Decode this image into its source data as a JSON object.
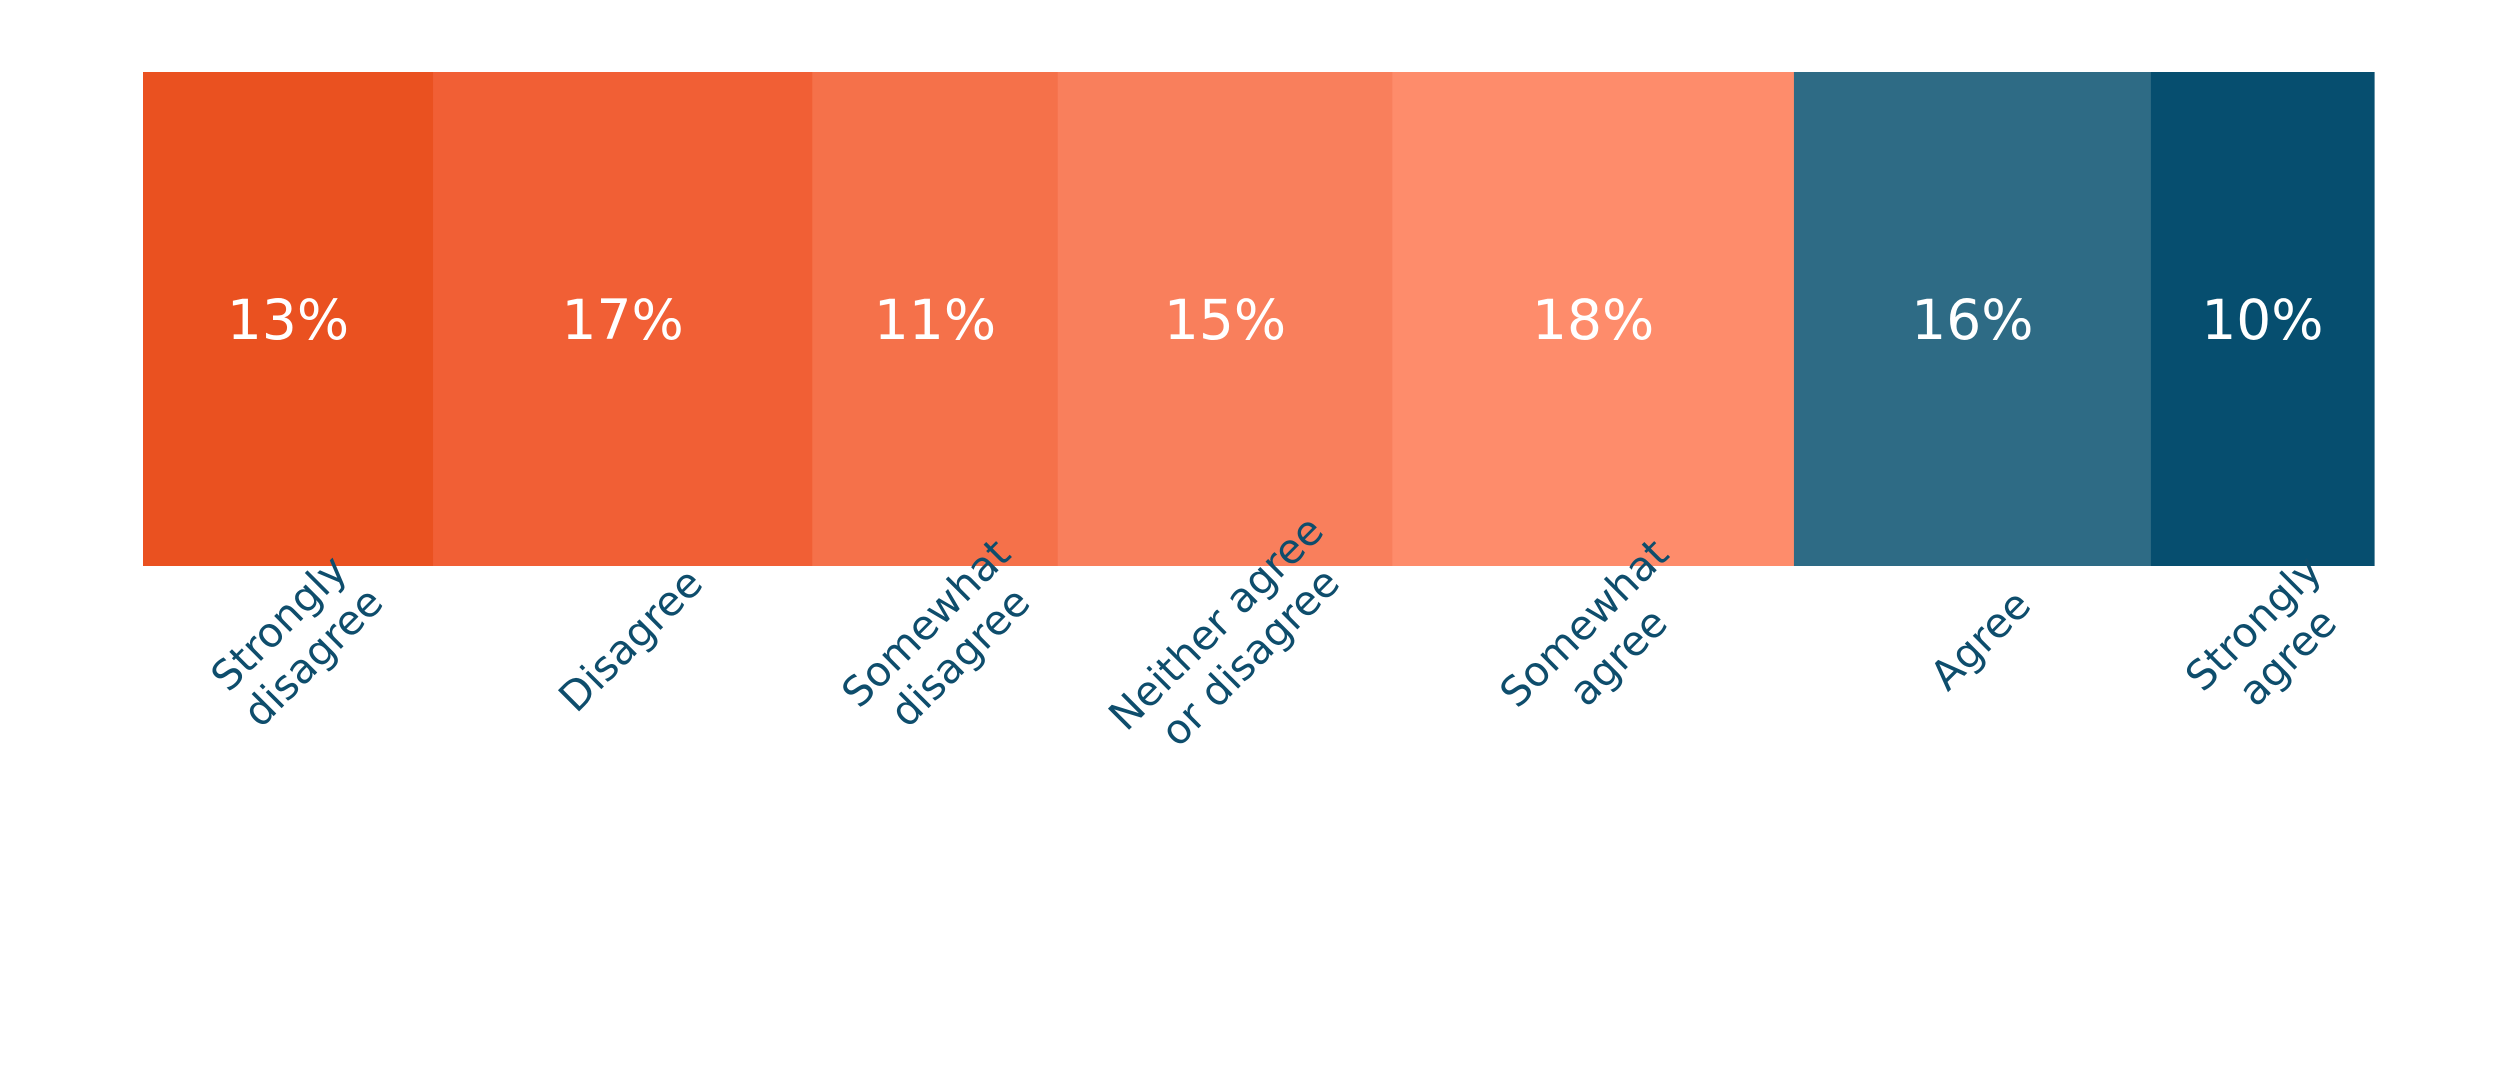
{
  "chart_data": {
    "type": "bar",
    "orientation": "horizontal-stacked",
    "title": "",
    "xlabel": "",
    "ylabel": "",
    "grid": false,
    "legend": "none",
    "series": [
      {
        "value": 13,
        "label": "13%",
        "categories": [
          "Strongly",
          "disagree"
        ],
        "color": "#ea5120"
      },
      {
        "value": 17,
        "label": "17%",
        "categories": [
          "Disagree"
        ],
        "color": "#f15f35"
      },
      {
        "value": 11,
        "label": "11%",
        "categories": [
          "Somewhat",
          "disagree"
        ],
        "color": "#f5714a"
      },
      {
        "value": 15,
        "label": "15%",
        "categories": [
          "Neither agree",
          "or disagree"
        ],
        "color": "#f97f5c"
      },
      {
        "value": 18,
        "label": "18%",
        "categories": [
          "Somewhat",
          "agree"
        ],
        "color": "#fe8c6b"
      },
      {
        "value": 16,
        "label": "16%",
        "categories": [
          "Agree"
        ],
        "color": "#2e6b85"
      },
      {
        "value": 10,
        "label": "10%",
        "categories": [
          "Strongly",
          "agree"
        ],
        "color": "#064e6f"
      }
    ]
  }
}
